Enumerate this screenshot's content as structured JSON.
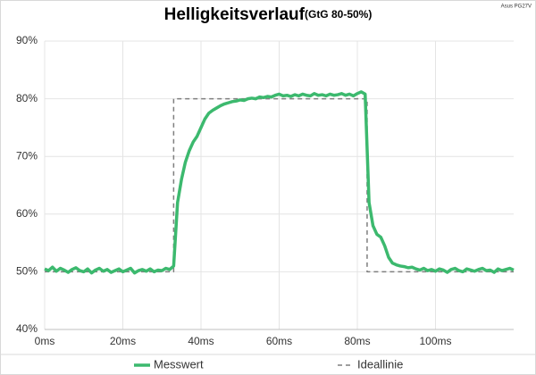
{
  "chart_data": {
    "type": "line",
    "title": "Helligkeitsverlauf",
    "subtitle": "(GtG 80-50%)",
    "corner_label": "Asus PG27V",
    "xlim": [
      0,
      120
    ],
    "ylim": [
      40,
      90
    ],
    "xticks": [
      {
        "value": 0,
        "label": "0ms"
      },
      {
        "value": 20,
        "label": "20ms"
      },
      {
        "value": 40,
        "label": "40ms"
      },
      {
        "value": 60,
        "label": "60ms"
      },
      {
        "value": 80,
        "label": "80ms"
      },
      {
        "value": 100,
        "label": "100ms"
      }
    ],
    "yticks": [
      {
        "value": 40,
        "label": "40%"
      },
      {
        "value": 50,
        "label": "50%"
      },
      {
        "value": 60,
        "label": "60%"
      },
      {
        "value": 70,
        "label": "70%"
      },
      {
        "value": 80,
        "label": "80%"
      },
      {
        "value": 90,
        "label": "90%"
      }
    ],
    "grid": true,
    "legend": "bottom",
    "series": [
      {
        "name": "Messwert",
        "color": "#3cb96e",
        "style": "solid",
        "x": [
          0,
          1,
          2,
          3,
          4,
          5,
          6,
          7,
          8,
          9,
          10,
          11,
          12,
          13,
          14,
          15,
          16,
          17,
          18,
          19,
          20,
          21,
          22,
          23,
          24,
          25,
          26,
          27,
          28,
          29,
          30,
          31,
          32,
          33,
          34,
          35,
          36,
          37,
          38,
          39,
          40,
          41,
          42,
          43,
          44,
          45,
          46,
          47,
          48,
          49,
          50,
          51,
          52,
          53,
          54,
          55,
          56,
          57,
          58,
          59,
          60,
          61,
          62,
          63,
          64,
          65,
          66,
          67,
          68,
          69,
          70,
          71,
          72,
          73,
          74,
          75,
          76,
          77,
          78,
          79,
          80,
          81,
          82,
          83,
          84,
          85,
          86,
          87,
          88,
          89,
          90,
          91,
          92,
          93,
          94,
          95,
          96,
          97,
          98,
          99,
          100,
          101,
          102,
          103,
          104,
          105,
          106,
          107,
          108,
          109,
          110,
          111,
          112,
          113,
          114,
          115,
          116,
          117,
          118,
          119,
          120
        ],
        "values": [
          50.5,
          50.2,
          50.8,
          50.1,
          50.6,
          50.3,
          49.9,
          50.4,
          50.7,
          50.2,
          50.0,
          50.5,
          49.8,
          50.3,
          50.6,
          50.1,
          50.4,
          49.9,
          50.2,
          50.5,
          50.0,
          50.3,
          50.6,
          49.8,
          50.2,
          50.4,
          50.1,
          50.5,
          50.0,
          50.3,
          50.2,
          50.6,
          50.4,
          51,
          62,
          66,
          69,
          71,
          72.5,
          73.5,
          75,
          76.5,
          77.5,
          78,
          78.4,
          78.8,
          79.1,
          79.3,
          79.5,
          79.6,
          79.8,
          79.7,
          80,
          80.1,
          80.0,
          80.3,
          80.2,
          80.4,
          80.3,
          80.6,
          80.8,
          80.5,
          80.6,
          80.4,
          80.7,
          80.5,
          80.8,
          80.6,
          80.5,
          80.9,
          80.6,
          80.7,
          80.5,
          80.8,
          80.6,
          80.7,
          80.9,
          80.6,
          80.8,
          80.5,
          80.9,
          81.2,
          80.8,
          62,
          58,
          56.5,
          56,
          54.5,
          52.5,
          51.5,
          51.2,
          51,
          50.9,
          50.7,
          50.8,
          50.5,
          50.3,
          50.6,
          50.2,
          50.4,
          50.1,
          50.5,
          50.3,
          49.9,
          50.4,
          50.6,
          50.2,
          50.0,
          50.5,
          50.3,
          50.1,
          50.4,
          50.6,
          50.2,
          50.3,
          49.9,
          50.5,
          50.2,
          50.4,
          50.6,
          50.3
        ]
      },
      {
        "name": "Ideallinie",
        "color": "#7f7f7f",
        "style": "dashed",
        "x": [
          0,
          33,
          33,
          82.5,
          82.5,
          120
        ],
        "values": [
          50,
          50,
          80,
          80,
          50,
          50
        ]
      }
    ]
  }
}
